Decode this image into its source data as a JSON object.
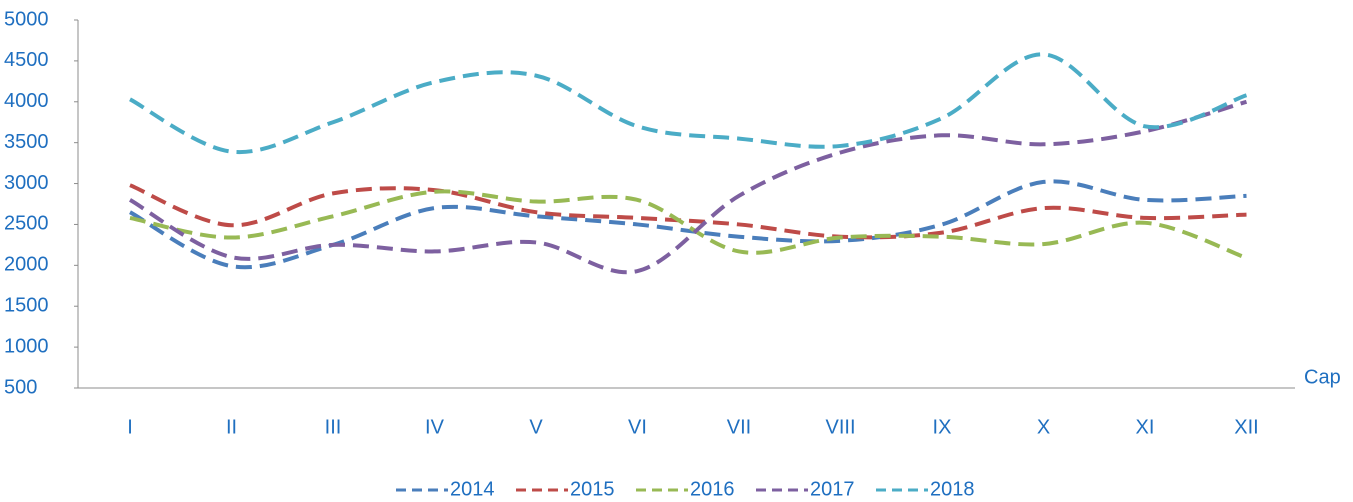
{
  "chart_data": {
    "type": "line",
    "categories": [
      "I",
      "II",
      "III",
      "IV",
      "V",
      "VI",
      "VII",
      "VIII",
      "IX",
      "X",
      "XI",
      "XII"
    ],
    "x_label": "Cap",
    "ylim": [
      500,
      5000
    ],
    "yticks": [
      500,
      1000,
      1500,
      2000,
      2500,
      3000,
      3500,
      4000,
      4500,
      5000
    ],
    "smooth": true,
    "legend": "bottom",
    "series": [
      {
        "name": "2014",
        "color": "#4a7ebb",
        "values": [
          2650,
          1990,
          2250,
          2700,
          2600,
          2500,
          2350,
          2300,
          2500,
          3020,
          2800,
          2850
        ]
      },
      {
        "name": "2015",
        "color": "#be4b48",
        "values": [
          2980,
          2490,
          2880,
          2920,
          2650,
          2580,
          2500,
          2350,
          2400,
          2700,
          2580,
          2620
        ]
      },
      {
        "name": "2016",
        "color": "#98b954",
        "values": [
          2580,
          2340,
          2600,
          2900,
          2780,
          2800,
          2170,
          2340,
          2350,
          2260,
          2520,
          2090
        ]
      },
      {
        "name": "2017",
        "color": "#7d60a0",
        "values": [
          2800,
          2100,
          2250,
          2170,
          2280,
          1930,
          2850,
          3380,
          3590,
          3480,
          3640,
          4000
        ]
      },
      {
        "name": "2018",
        "color": "#4bacc6",
        "values": [
          4030,
          3390,
          3750,
          4240,
          4320,
          3700,
          3550,
          3460,
          3800,
          4580,
          3700,
          4080
        ]
      }
    ]
  }
}
